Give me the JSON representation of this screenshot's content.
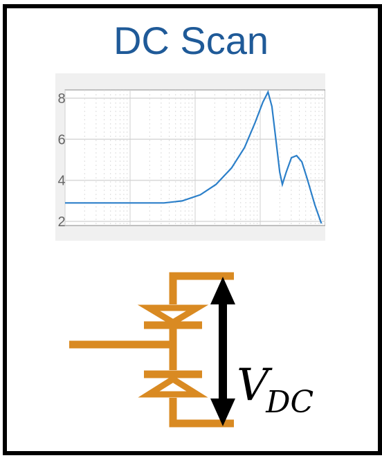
{
  "title": "DC Scan",
  "colors": {
    "title": "#1f5a98",
    "plot_line": "#2b7fc9",
    "circuit": "#d98a22",
    "arrow": "#000000",
    "frame": "#000000"
  },
  "chart_data": {
    "type": "line",
    "title": "",
    "xlabel": "",
    "ylabel": "",
    "xscale": "log",
    "ylim": [
      1.8,
      8.4
    ],
    "yticks": [
      2,
      4,
      6,
      8
    ],
    "grid": true,
    "series": [
      {
        "values": [
          {
            "x": 0.0,
            "y": 2.9
          },
          {
            "x": 0.38,
            "y": 2.9
          },
          {
            "x": 0.45,
            "y": 3.0
          },
          {
            "x": 0.52,
            "y": 3.3
          },
          {
            "x": 0.58,
            "y": 3.8
          },
          {
            "x": 0.64,
            "y": 4.6
          },
          {
            "x": 0.69,
            "y": 5.6
          },
          {
            "x": 0.73,
            "y": 6.8
          },
          {
            "x": 0.76,
            "y": 7.8
          },
          {
            "x": 0.78,
            "y": 8.3
          },
          {
            "x": 0.795,
            "y": 7.6
          },
          {
            "x": 0.81,
            "y": 6.0
          },
          {
            "x": 0.825,
            "y": 4.4
          },
          {
            "x": 0.835,
            "y": 3.8
          },
          {
            "x": 0.85,
            "y": 4.4
          },
          {
            "x": 0.87,
            "y": 5.1
          },
          {
            "x": 0.89,
            "y": 5.2
          },
          {
            "x": 0.91,
            "y": 4.9
          },
          {
            "x": 0.93,
            "y": 4.1
          },
          {
            "x": 0.96,
            "y": 2.8
          },
          {
            "x": 0.985,
            "y": 1.9
          }
        ]
      }
    ]
  },
  "diagram": {
    "voltage_label": "V",
    "voltage_subscript": "DC"
  }
}
